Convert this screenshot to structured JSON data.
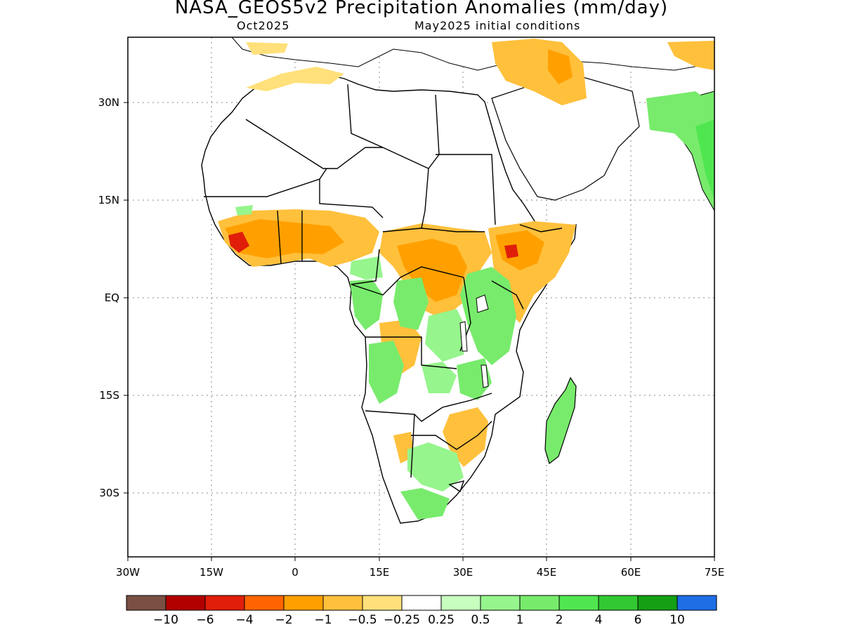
{
  "title": "NASA_GEOS5v2 Precipitation Anomalies (mm/day)",
  "subtitle_left": "Oct2025",
  "subtitle_right": "May2025 initial conditions",
  "map": {
    "lon_range": [
      -30,
      75
    ],
    "lat_range": [
      -40,
      40
    ],
    "x_ticks": [
      "30W",
      "15W",
      "0",
      "15E",
      "30E",
      "45E",
      "60E",
      "75E"
    ],
    "y_ticks": [
      "30N",
      "15N",
      "EQ",
      "15S",
      "30S"
    ],
    "grid": "dotted"
  },
  "colorbar": {
    "colors": [
      "#7a4f44",
      "#b20000",
      "#e01e0a",
      "#ff6400",
      "#ffa000",
      "#ffc03c",
      "#ffe07a",
      "#ffffff",
      "#c6ffbe",
      "#96f58c",
      "#78eb6c",
      "#50e650",
      "#32c832",
      "#14a014",
      "#1e6ee6"
    ],
    "labels": [
      "−10",
      "−6",
      "−4",
      "−2",
      "−1",
      "−0.5",
      "−0.25",
      "0.25",
      "0.5",
      "1",
      "2",
      "4",
      "6",
      "10"
    ]
  }
}
